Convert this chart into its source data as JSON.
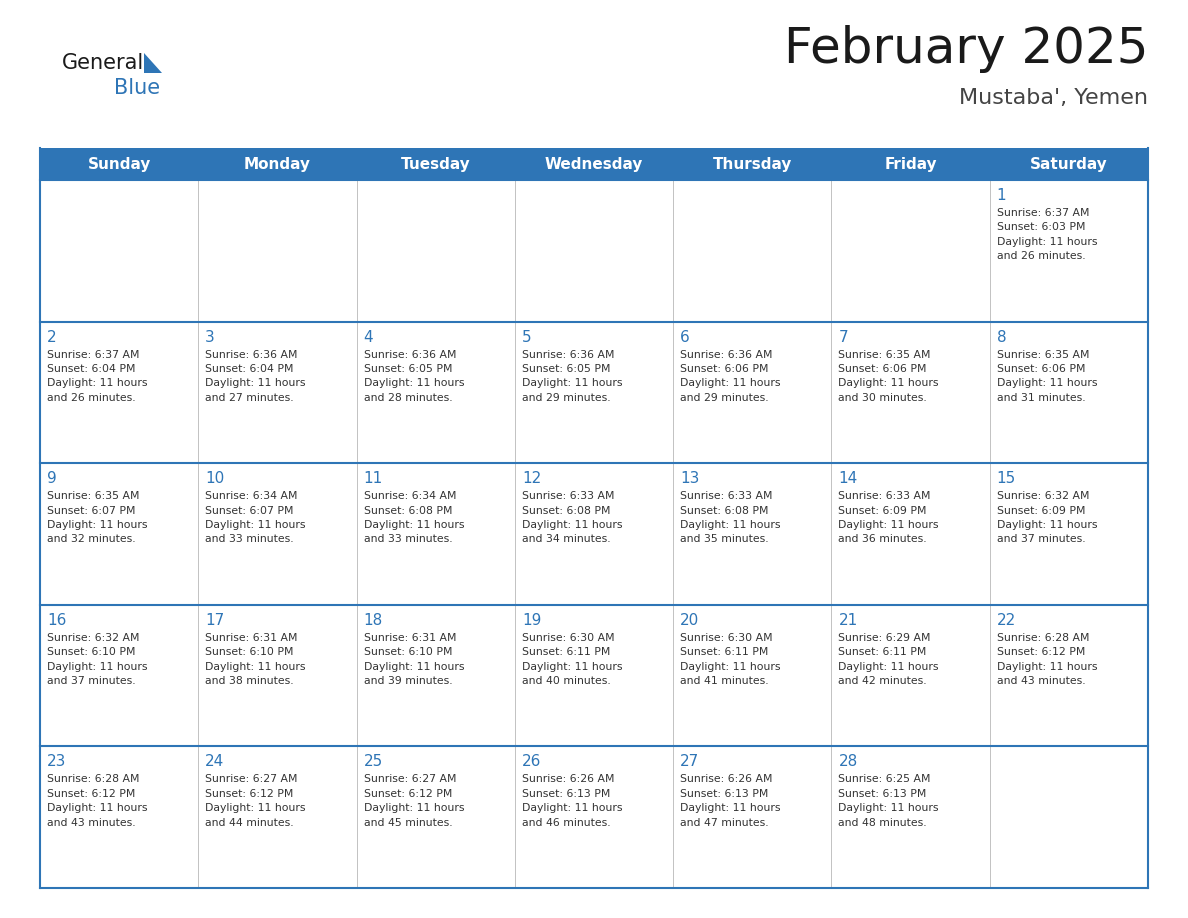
{
  "title": "February 2025",
  "subtitle": "Mustaba', Yemen",
  "days_of_week": [
    "Sunday",
    "Monday",
    "Tuesday",
    "Wednesday",
    "Thursday",
    "Friday",
    "Saturday"
  ],
  "header_bg": "#2E75B6",
  "header_text_color": "#FFFFFF",
  "cell_bg": "#FFFFFF",
  "cell_border_top_color": "#2E75B6",
  "cell_border_inner_color": "#AAAAAA",
  "title_color": "#1a1a1a",
  "subtitle_color": "#444444",
  "day_number_color": "#2E75B6",
  "cell_text_color": "#333333",
  "logo_general_color": "#1a1a1a",
  "logo_blue_color": "#2E75B6",
  "weeks": [
    [
      {
        "day": null,
        "info": ""
      },
      {
        "day": null,
        "info": ""
      },
      {
        "day": null,
        "info": ""
      },
      {
        "day": null,
        "info": ""
      },
      {
        "day": null,
        "info": ""
      },
      {
        "day": null,
        "info": ""
      },
      {
        "day": 1,
        "info": "Sunrise: 6:37 AM\nSunset: 6:03 PM\nDaylight: 11 hours\nand 26 minutes."
      }
    ],
    [
      {
        "day": 2,
        "info": "Sunrise: 6:37 AM\nSunset: 6:04 PM\nDaylight: 11 hours\nand 26 minutes."
      },
      {
        "day": 3,
        "info": "Sunrise: 6:36 AM\nSunset: 6:04 PM\nDaylight: 11 hours\nand 27 minutes."
      },
      {
        "day": 4,
        "info": "Sunrise: 6:36 AM\nSunset: 6:05 PM\nDaylight: 11 hours\nand 28 minutes."
      },
      {
        "day": 5,
        "info": "Sunrise: 6:36 AM\nSunset: 6:05 PM\nDaylight: 11 hours\nand 29 minutes."
      },
      {
        "day": 6,
        "info": "Sunrise: 6:36 AM\nSunset: 6:06 PM\nDaylight: 11 hours\nand 29 minutes."
      },
      {
        "day": 7,
        "info": "Sunrise: 6:35 AM\nSunset: 6:06 PM\nDaylight: 11 hours\nand 30 minutes."
      },
      {
        "day": 8,
        "info": "Sunrise: 6:35 AM\nSunset: 6:06 PM\nDaylight: 11 hours\nand 31 minutes."
      }
    ],
    [
      {
        "day": 9,
        "info": "Sunrise: 6:35 AM\nSunset: 6:07 PM\nDaylight: 11 hours\nand 32 minutes."
      },
      {
        "day": 10,
        "info": "Sunrise: 6:34 AM\nSunset: 6:07 PM\nDaylight: 11 hours\nand 33 minutes."
      },
      {
        "day": 11,
        "info": "Sunrise: 6:34 AM\nSunset: 6:08 PM\nDaylight: 11 hours\nand 33 minutes."
      },
      {
        "day": 12,
        "info": "Sunrise: 6:33 AM\nSunset: 6:08 PM\nDaylight: 11 hours\nand 34 minutes."
      },
      {
        "day": 13,
        "info": "Sunrise: 6:33 AM\nSunset: 6:08 PM\nDaylight: 11 hours\nand 35 minutes."
      },
      {
        "day": 14,
        "info": "Sunrise: 6:33 AM\nSunset: 6:09 PM\nDaylight: 11 hours\nand 36 minutes."
      },
      {
        "day": 15,
        "info": "Sunrise: 6:32 AM\nSunset: 6:09 PM\nDaylight: 11 hours\nand 37 minutes."
      }
    ],
    [
      {
        "day": 16,
        "info": "Sunrise: 6:32 AM\nSunset: 6:10 PM\nDaylight: 11 hours\nand 37 minutes."
      },
      {
        "day": 17,
        "info": "Sunrise: 6:31 AM\nSunset: 6:10 PM\nDaylight: 11 hours\nand 38 minutes."
      },
      {
        "day": 18,
        "info": "Sunrise: 6:31 AM\nSunset: 6:10 PM\nDaylight: 11 hours\nand 39 minutes."
      },
      {
        "day": 19,
        "info": "Sunrise: 6:30 AM\nSunset: 6:11 PM\nDaylight: 11 hours\nand 40 minutes."
      },
      {
        "day": 20,
        "info": "Sunrise: 6:30 AM\nSunset: 6:11 PM\nDaylight: 11 hours\nand 41 minutes."
      },
      {
        "day": 21,
        "info": "Sunrise: 6:29 AM\nSunset: 6:11 PM\nDaylight: 11 hours\nand 42 minutes."
      },
      {
        "day": 22,
        "info": "Sunrise: 6:28 AM\nSunset: 6:12 PM\nDaylight: 11 hours\nand 43 minutes."
      }
    ],
    [
      {
        "day": 23,
        "info": "Sunrise: 6:28 AM\nSunset: 6:12 PM\nDaylight: 11 hours\nand 43 minutes."
      },
      {
        "day": 24,
        "info": "Sunrise: 6:27 AM\nSunset: 6:12 PM\nDaylight: 11 hours\nand 44 minutes."
      },
      {
        "day": 25,
        "info": "Sunrise: 6:27 AM\nSunset: 6:12 PM\nDaylight: 11 hours\nand 45 minutes."
      },
      {
        "day": 26,
        "info": "Sunrise: 6:26 AM\nSunset: 6:13 PM\nDaylight: 11 hours\nand 46 minutes."
      },
      {
        "day": 27,
        "info": "Sunrise: 6:26 AM\nSunset: 6:13 PM\nDaylight: 11 hours\nand 47 minutes."
      },
      {
        "day": 28,
        "info": "Sunrise: 6:25 AM\nSunset: 6:13 PM\nDaylight: 11 hours\nand 48 minutes."
      },
      {
        "day": null,
        "info": ""
      }
    ]
  ],
  "fig_width": 11.88,
  "fig_height": 9.18,
  "dpi": 100
}
